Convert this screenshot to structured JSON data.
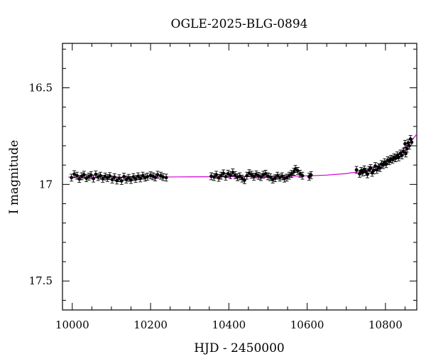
{
  "chart_data": {
    "type": "scatter",
    "title": "OGLE-2025-BLG-0894",
    "xlabel": "HJD - 2450000",
    "ylabel": "I magnitude",
    "xlim": [
      9975,
      10880
    ],
    "ylim": [
      17.65,
      16.27
    ],
    "y_inverted": true,
    "x_ticks": [
      10000,
      10200,
      10400,
      10600,
      10800
    ],
    "y_ticks": [
      16.5,
      17,
      17.5
    ],
    "x_tick_labels": [
      "10000",
      "10200",
      "10400",
      "10600",
      "10800"
    ],
    "y_tick_labels": [
      "16.5",
      "17",
      "17.5"
    ],
    "grid": false,
    "colors": {
      "points": "#000000",
      "model": "#d400d4"
    },
    "series": [
      {
        "kind": "points_with_errorbars",
        "points": [
          [
            9998,
            16.965
          ],
          [
            10005,
            16.947
          ],
          [
            10012,
            16.955
          ],
          [
            10018,
            16.972
          ],
          [
            10024,
            16.958
          ],
          [
            10030,
            16.95
          ],
          [
            10036,
            16.968
          ],
          [
            10042,
            16.96
          ],
          [
            10048,
            16.952
          ],
          [
            10054,
            16.97
          ],
          [
            10060,
            16.948
          ],
          [
            10066,
            16.962
          ],
          [
            10072,
            16.955
          ],
          [
            10078,
            16.971
          ],
          [
            10084,
            16.959
          ],
          [
            10090,
            16.967
          ],
          [
            10096,
            16.957
          ],
          [
            10102,
            16.975
          ],
          [
            10108,
            16.963
          ],
          [
            10114,
            16.98
          ],
          [
            10120,
            16.968
          ],
          [
            10126,
            16.982
          ],
          [
            10132,
            16.96
          ],
          [
            10138,
            16.975
          ],
          [
            10144,
            16.966
          ],
          [
            10150,
            16.977
          ],
          [
            10156,
            16.962
          ],
          [
            10162,
            16.972
          ],
          [
            10168,
            16.958
          ],
          [
            10174,
            16.969
          ],
          [
            10180,
            16.955
          ],
          [
            10186,
            16.965
          ],
          [
            10192,
            16.96
          ],
          [
            10200,
            16.953
          ],
          [
            10206,
            16.958
          ],
          [
            10212,
            16.964
          ],
          [
            10218,
            16.95
          ],
          [
            10226,
            16.955
          ],
          [
            10232,
            16.962
          ],
          [
            10240,
            16.965
          ],
          [
            10355,
            16.958
          ],
          [
            10362,
            16.962
          ],
          [
            10368,
            16.95
          ],
          [
            10374,
            16.966
          ],
          [
            10380,
            16.955
          ],
          [
            10386,
            16.943
          ],
          [
            10392,
            16.96
          ],
          [
            10398,
            16.945
          ],
          [
            10404,
            16.952
          ],
          [
            10410,
            16.938
          ],
          [
            10416,
            16.952
          ],
          [
            10422,
            16.963
          ],
          [
            10428,
            16.958
          ],
          [
            10434,
            16.97
          ],
          [
            10440,
            16.978
          ],
          [
            10446,
            16.955
          ],
          [
            10452,
            16.942
          ],
          [
            10458,
            16.95
          ],
          [
            10464,
            16.96
          ],
          [
            10470,
            16.948
          ],
          [
            10476,
            16.956
          ],
          [
            10482,
            16.962
          ],
          [
            10488,
            16.95
          ],
          [
            10494,
            16.945
          ],
          [
            10500,
            16.958
          ],
          [
            10506,
            16.963
          ],
          [
            10512,
            16.975
          ],
          [
            10518,
            16.968
          ],
          [
            10524,
            16.955
          ],
          [
            10530,
            16.965
          ],
          [
            10536,
            16.958
          ],
          [
            10542,
            16.97
          ],
          [
            10548,
            16.965
          ],
          [
            10554,
            16.955
          ],
          [
            10560,
            16.946
          ],
          [
            10566,
            16.935
          ],
          [
            10570,
            16.92
          ],
          [
            10576,
            16.93
          ],
          [
            10582,
            16.945
          ],
          [
            10588,
            16.955
          ],
          [
            10605,
            16.96
          ],
          [
            10610,
            16.952
          ],
          [
            10726,
            16.925
          ],
          [
            10734,
            16.945
          ],
          [
            10738,
            16.93
          ],
          [
            10742,
            16.938
          ],
          [
            10746,
            16.922
          ],
          [
            10750,
            16.935
          ],
          [
            10754,
            16.948
          ],
          [
            10758,
            16.925
          ],
          [
            10762,
            16.915
          ],
          [
            10766,
            16.94
          ],
          [
            10770,
            16.928
          ],
          [
            10774,
            16.905
          ],
          [
            10778,
            16.925
          ],
          [
            10782,
            16.91
          ],
          [
            10786,
            16.915
          ],
          [
            10790,
            16.895
          ],
          [
            10794,
            16.9
          ],
          [
            10798,
            16.885
          ],
          [
            10802,
            16.895
          ],
          [
            10806,
            16.875
          ],
          [
            10810,
            16.88
          ],
          [
            10814,
            16.868
          ],
          [
            10818,
            16.872
          ],
          [
            10822,
            16.86
          ],
          [
            10826,
            16.865
          ],
          [
            10830,
            16.85
          ],
          [
            10834,
            16.86
          ],
          [
            10838,
            16.84
          ],
          [
            10842,
            16.85
          ],
          [
            10846,
            16.83
          ],
          [
            10850,
            16.79
          ],
          [
            10852,
            16.84
          ],
          [
            10855,
            16.815
          ],
          [
            10858,
            16.785
          ],
          [
            10861,
            16.8
          ],
          [
            10864,
            16.765
          ],
          [
            10867,
            16.782
          ]
        ],
        "error": 0.018
      },
      {
        "kind": "model_curve",
        "x": [
          9990,
          10100,
          10200,
          10300,
          10400,
          10500,
          10550,
          10600,
          10650,
          10700,
          10730,
          10760,
          10780,
          10800,
          10820,
          10840,
          10860,
          10880
        ],
        "y": [
          16.962,
          16.962,
          16.962,
          16.961,
          16.96,
          16.959,
          16.958,
          16.956,
          16.952,
          16.944,
          16.935,
          16.921,
          16.906,
          16.887,
          16.862,
          16.83,
          16.79,
          16.74
        ]
      }
    ]
  }
}
